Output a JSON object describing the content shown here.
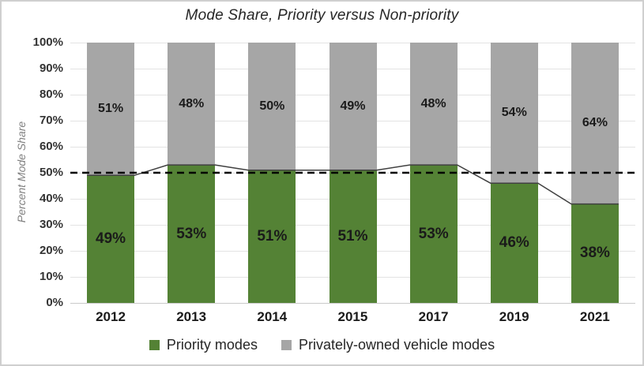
{
  "window": {
    "background": "#ffffff",
    "border_color": "#cfcfcf"
  },
  "chart_data": {
    "type": "bar",
    "subtype": "stacked-percent-with-trend-line",
    "title": "Mode Share, Priority versus Non-priority",
    "xlabel": "",
    "ylabel": "Percent Mode Share",
    "categories": [
      "2012",
      "2013",
      "2014",
      "2015",
      "2017",
      "2019",
      "2021"
    ],
    "series": [
      {
        "name": "Priority modes",
        "color": "#548235",
        "values": [
          49,
          53,
          51,
          51,
          53,
          46,
          38
        ],
        "labels": [
          "49%",
          "53%",
          "51%",
          "51%",
          "53%",
          "46%",
          "38%"
        ]
      },
      {
        "name": "Privately-owned vehicle modes",
        "color": "#a6a6a6",
        "values": [
          51,
          48,
          50,
          49,
          48,
          54,
          64
        ],
        "labels": [
          "51%",
          "48%",
          "50%",
          "49%",
          "48%",
          "54%",
          "64%"
        ]
      }
    ],
    "y_axis": {
      "min": 0,
      "max": 100,
      "tick_step": 10,
      "tick_labels": [
        "0%",
        "10%",
        "20%",
        "30%",
        "40%",
        "50%",
        "60%",
        "70%",
        "80%",
        "90%",
        "100%"
      ]
    },
    "reference_line": {
      "value": 50,
      "style": "dashed",
      "color": "#000000"
    },
    "trend_line": {
      "follows_series": "Priority modes",
      "color": "#404040"
    },
    "grid": true,
    "legend_position": "bottom",
    "legend": [
      {
        "label": "Priority modes",
        "color": "#548235"
      },
      {
        "label": "Privately-owned vehicle modes",
        "color": "#a6a6a6"
      }
    ]
  }
}
